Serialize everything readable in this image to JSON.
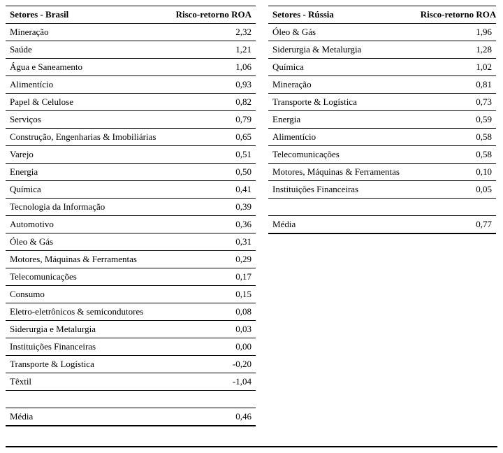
{
  "left": {
    "header_sector": "Setores - Brasil",
    "header_value": "Risco-retorno ROA",
    "rows": [
      {
        "sector": "Mineração",
        "value": "2,32"
      },
      {
        "sector": "Saúde",
        "value": "1,21"
      },
      {
        "sector": "Água e Saneamento",
        "value": "1,06"
      },
      {
        "sector": "Alimentício",
        "value": "0,93"
      },
      {
        "sector": "Papel & Celulose",
        "value": "0,82"
      },
      {
        "sector": "Serviços",
        "value": "0,79"
      },
      {
        "sector": "Construção, Engenharias & Imobiliárias",
        "value": "0,65"
      },
      {
        "sector": "Varejo",
        "value": "0,51"
      },
      {
        "sector": "Energia",
        "value": "0,50"
      },
      {
        "sector": "Química",
        "value": "0,41"
      },
      {
        "sector": "Tecnologia da Informação",
        "value": "0,39"
      },
      {
        "sector": "Automotivo",
        "value": "0,36"
      },
      {
        "sector": "Óleo & Gás",
        "value": "0,31"
      },
      {
        "sector": "Motores, Máquinas & Ferramentas",
        "value": "0,29"
      },
      {
        "sector": "Telecomunicações",
        "value": "0,17"
      },
      {
        "sector": "Consumo",
        "value": "0,15"
      },
      {
        "sector": "Eletro-eletrônicos & semicondutores",
        "value": "0,08"
      },
      {
        "sector": "Siderurgia e Metalurgia",
        "value": "0,03"
      },
      {
        "sector": "Instituições Financeiras",
        "value": "0,00"
      },
      {
        "sector": "Transporte & Logística",
        "value": "-0,20"
      },
      {
        "sector": "Têxtil",
        "value": "-1,04"
      }
    ],
    "footer_label": "Média",
    "footer_value": "0,46"
  },
  "right": {
    "header_sector": "Setores - Rússia",
    "header_value": "Risco-retorno ROA",
    "rows": [
      {
        "sector": "Óleo & Gás",
        "value": "1,96"
      },
      {
        "sector": "Siderurgia & Metalurgia",
        "value": "1,28"
      },
      {
        "sector": "Química",
        "value": "1,02"
      },
      {
        "sector": "Mineração",
        "value": "0,81"
      },
      {
        "sector": "Transporte & Logística",
        "value": "0,73"
      },
      {
        "sector": "Energia",
        "value": "0,59"
      },
      {
        "sector": "Alimentício",
        "value": "0,58"
      },
      {
        "sector": "Telecomunicações",
        "value": "0,58"
      },
      {
        "sector": "Motores, Máquinas & Ferramentas",
        "value": "0,10"
      },
      {
        "sector": "Instituições Financeiras",
        "value": "0,05"
      }
    ],
    "footer_label": "Média",
    "footer_value": "0,77"
  },
  "style": {
    "font_family": "Times New Roman",
    "font_size_pt": 10,
    "text_color": "#000000",
    "background_color": "#ffffff",
    "row_border_color": "#000000"
  }
}
